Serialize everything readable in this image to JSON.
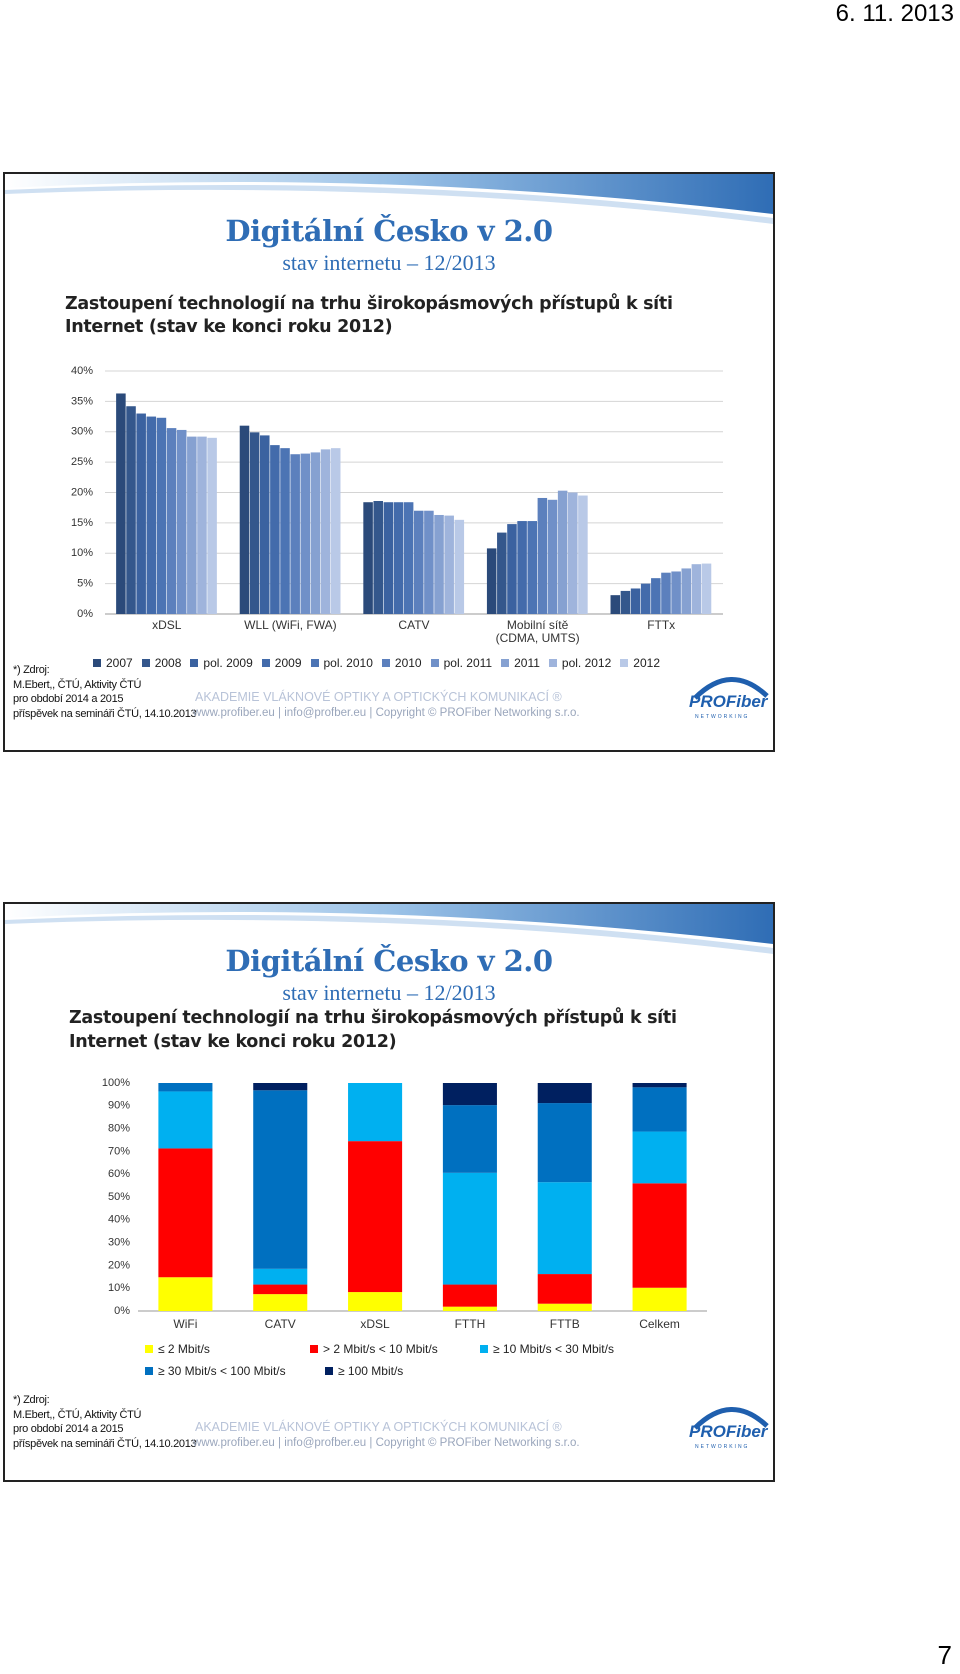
{
  "header": {
    "date": "6. 11. 2013"
  },
  "page_number": "7",
  "slides": [
    {
      "title": "Digitální Česko v 2.0",
      "subtitle": "stav internetu – 12/2013",
      "heading": [
        "Zastoupení technologií na trhu širokopásmových přístupů k síti",
        "Internet (stav ke konci roku 2012)"
      ],
      "source": [
        "*) Zdroj:",
        "M.Ebert,, ČTÚ, Aktivity ČTÚ",
        "pro období 2014 a 2015",
        "příspěvek na semináři ČTÚ, 14.10.2013"
      ],
      "academy": "AKADEMIE VLÁKNOVÉ OPTIKY  A OPTICKÝCH KOMUNIKACÍ ®",
      "links": "www.profiber.eu  |  info@profber.eu | Copyright © PROFiber Networking s.r.o.",
      "logo": "PROFiber",
      "logo_sub": "NETWORKING"
    },
    {
      "title": "Digitální Česko v 2.0",
      "subtitle": "stav internetu – 12/2013",
      "heading": [
        "Zastoupení technologií na trhu širokopásmových přístupů k síti",
        "Internet (stav ke konci roku 2012)"
      ],
      "source": [
        "*) Zdroj:",
        "M.Ebert,, ČTÚ, Aktivity ČTÚ",
        "pro období 2014 a 2015",
        "příspěvek na semináři ČTÚ, 14.10.2013"
      ],
      "academy": "AKADEMIE VLÁKNOVÉ OPTIKY  A OPTICKÝCH KOMUNIKACÍ ®",
      "links": "www.profiber.eu  |  info@profber.eu | Copyright © PROFiber Networking s.r.o.",
      "logo": "PROFiber",
      "logo_sub": "NETWORKING"
    }
  ],
  "chart_data": [
    {
      "type": "bar",
      "categories": [
        "xDSL",
        "WLL (WiFi, FWA)",
        "CATV",
        "Mobilní sítě\n(CDMA, UMTS)",
        "FTTx"
      ],
      "series": [
        {
          "name": "2007",
          "color": "#2b4a7a",
          "values": [
            36.3,
            31.0,
            18.4,
            10.8,
            3.1
          ]
        },
        {
          "name": "2008",
          "color": "#34578c",
          "values": [
            34.2,
            29.9,
            18.6,
            13.4,
            3.8
          ]
        },
        {
          "name": "pol. 2009",
          "color": "#3b62a0",
          "values": [
            33.0,
            29.4,
            18.4,
            14.8,
            4.2
          ]
        },
        {
          "name": "2009",
          "color": "#436bab",
          "values": [
            32.5,
            27.8,
            18.4,
            15.3,
            5.0
          ]
        },
        {
          "name": "pol. 2010",
          "color": "#4c74b4",
          "values": [
            32.3,
            27.3,
            18.4,
            15.3,
            5.9
          ]
        },
        {
          "name": "2010",
          "color": "#5c80bd",
          "values": [
            30.6,
            26.3,
            17.0,
            19.1,
            6.8
          ]
        },
        {
          "name": "pol. 2011",
          "color": "#7090c8",
          "values": [
            30.3,
            26.4,
            17.0,
            18.8,
            7.0
          ]
        },
        {
          "name": "2011",
          "color": "#86a1d1",
          "values": [
            29.2,
            26.6,
            16.3,
            20.3,
            7.5
          ]
        },
        {
          "name": "pol. 2012",
          "color": "#9fb4dc",
          "values": [
            29.2,
            27.1,
            16.2,
            20.0,
            8.2
          ]
        },
        {
          "name": "2012",
          "color": "#b9c9e7",
          "values": [
            29.0,
            27.3,
            15.5,
            19.5,
            8.3
          ]
        }
      ],
      "ylim": [
        0,
        40
      ],
      "yticks": [
        {
          "value": 0,
          "label": "0%"
        },
        {
          "value": 5,
          "label": "5%"
        },
        {
          "value": 10,
          "label": "10%"
        },
        {
          "value": 15,
          "label": "15%"
        },
        {
          "value": 20,
          "label": "20%"
        },
        {
          "value": 25,
          "label": "25%"
        },
        {
          "value": 30,
          "label": "30%"
        },
        {
          "value": 35,
          "label": "35%"
        },
        {
          "value": 40,
          "label": "40%"
        }
      ],
      "grid": true,
      "legend": "bottom"
    },
    {
      "type": "stacked_bar",
      "categories": [
        "WiFi",
        "CATV",
        "xDSL",
        "FTTH",
        "FTTB",
        "Celkem"
      ],
      "series": [
        {
          "name": "≤ 2 Mbit/s",
          "color": "#ffff00",
          "values": [
            14.8,
            7.4,
            8.3,
            1.9,
            3.2,
            10.2
          ]
        },
        {
          "name": "> 2 Mbit/s < 10 Mbit/s",
          "color": "#ff0000",
          "values": [
            56.5,
            4.2,
            66.2,
            9.7,
            13.0,
            45.8
          ]
        },
        {
          "name": "≥ 10 Mbit/s < 30 Mbit/s",
          "color": "#00b0f0",
          "values": [
            25.0,
            6.9,
            25.5,
            49.0,
            40.3,
            22.7
          ]
        },
        {
          "name": "≥ 30 Mbit/s < 100 Mbit/s",
          "color": "#0070c0",
          "values": [
            3.7,
            78.3,
            0,
            29.7,
            34.7,
            19.4
          ]
        },
        {
          "name": "≥ 100 Mbit/s",
          "color": "#002060",
          "values": [
            0,
            3.2,
            0,
            9.7,
            8.8,
            1.9
          ]
        }
      ],
      "ylim": [
        0,
        100
      ],
      "yticks": [
        {
          "value": 0,
          "label": "0%"
        },
        {
          "value": 10,
          "label": "10%"
        },
        {
          "value": 20,
          "label": "20%"
        },
        {
          "value": 30,
          "label": "30%"
        },
        {
          "value": 40,
          "label": "40%"
        },
        {
          "value": 50,
          "label": "50%"
        },
        {
          "value": 60,
          "label": "60%"
        },
        {
          "value": 70,
          "label": "70%"
        },
        {
          "value": 80,
          "label": "80%"
        },
        {
          "value": 90,
          "label": "90%"
        },
        {
          "value": 100,
          "label": "100%"
        }
      ],
      "grid": false,
      "legend": "bottom"
    }
  ]
}
